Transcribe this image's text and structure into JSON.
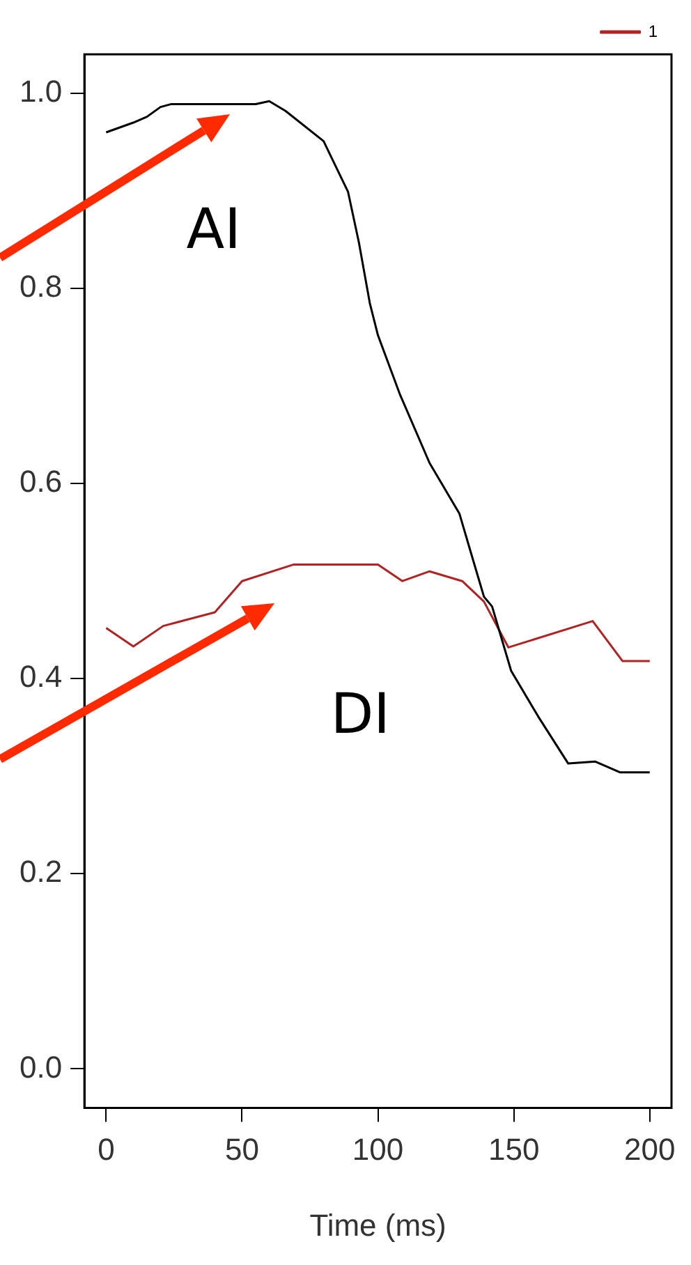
{
  "chart_data": {
    "type": "line",
    "xlabel": "Time (ms)",
    "xlim": [
      -8,
      208
    ],
    "ylim": [
      -0.04,
      1.04
    ],
    "xticks": [
      0,
      50,
      100,
      150,
      200
    ],
    "yticks": [
      {
        "value": 0,
        "label": "0.0"
      },
      0.2,
      0.4,
      0.6,
      0.8,
      {
        "value": 1,
        "label": "1.0"
      }
    ],
    "legend": "top right",
    "marker": "none",
    "line_style": "solid",
    "annotations": [
      "AI",
      "DI"
    ],
    "series": [
      {
        "color": "#000000",
        "x": [
          0,
          10,
          15,
          20,
          24,
          55,
          60,
          66,
          80,
          89,
          93,
          97,
          100,
          108,
          119,
          130,
          134,
          139,
          142,
          149,
          159,
          170,
          180,
          189,
          200
        ],
        "values": [
          0.96,
          0.97,
          0.976,
          0.986,
          0.989,
          0.989,
          0.992,
          0.982,
          0.951,
          0.899,
          0.847,
          0.785,
          0.752,
          0.692,
          0.621,
          0.569,
          0.531,
          0.484,
          0.474,
          0.408,
          0.361,
          0.313,
          0.315,
          0.304,
          0.304
        ]
      },
      {
        "name": "1",
        "color": "#b22222",
        "x": [
          0,
          10,
          21,
          40,
          50,
          69,
          100,
          109,
          119,
          131,
          139,
          148,
          179,
          190,
          200
        ],
        "values": [
          0.452,
          0.433,
          0.454,
          0.468,
          0.5,
          0.517,
          0.517,
          0.5,
          0.51,
          0.5,
          0.479,
          0.432,
          0.459,
          0.418,
          0.418
        ]
      }
    ]
  }
}
